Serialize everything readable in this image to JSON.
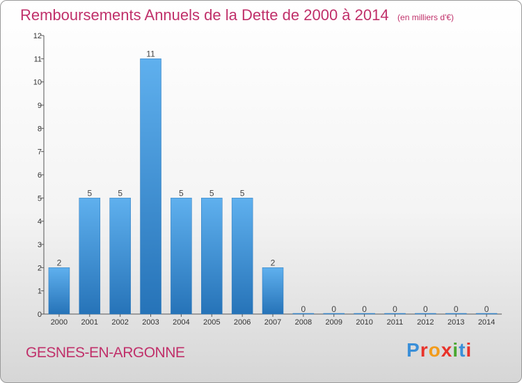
{
  "header": {
    "title": "Remboursements Annuels de la Dette de 2000 à 2014",
    "unit": "(en milliers d'€)"
  },
  "footer": {
    "commune": "GESNES-EN-ARGONNE",
    "logo": "Proxiti",
    "logo_colors": [
      "#3a8fd8",
      "#e8322a",
      "#f29b1a",
      "#e8322a",
      "#4aa832",
      "#3a8fd8",
      "#e8322a"
    ]
  },
  "chart_data": {
    "type": "bar",
    "title": "Remboursements Annuels de la Dette de 2000 à 2014",
    "categories": [
      "2000",
      "2001",
      "2002",
      "2003",
      "2004",
      "2005",
      "2006",
      "2007",
      "2008",
      "2009",
      "2010",
      "2011",
      "2012",
      "2013",
      "2014"
    ],
    "values": [
      2,
      5,
      5,
      11,
      5,
      5,
      5,
      2,
      0,
      0,
      0,
      0,
      0,
      0,
      0
    ],
    "ylim": [
      0,
      12
    ],
    "yticks": [
      0,
      1,
      2,
      3,
      4,
      5,
      6,
      7,
      8,
      9,
      10,
      11,
      12
    ],
    "grid": false,
    "bar_color": "#3f97dc",
    "bar_color_dark": "#2a78bd"
  }
}
